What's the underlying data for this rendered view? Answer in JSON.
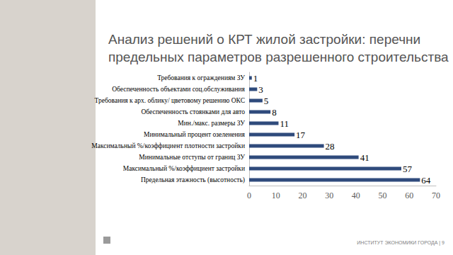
{
  "chart_data": {
    "type": "bar",
    "title": "Анализ решений о КРТ жилой застройки: перечни\nпредельных параметров разрешенного строительства",
    "orientation": "horizontal",
    "categories": [
      "Предельная этажность (высотность)",
      "Максимальный %/коэффициент застройки",
      "Минимальные отступы от границ ЗУ",
      "Максимальный %/коэффициент плотности застройки",
      "Минимальный процент озеленения",
      "Мин./макс. размеры ЗУ",
      "Обеспеченность стоянками для авто",
      "Требования к арх. облику/ цветовому решению ОКС",
      "Обеспеченность объектами соц.обслуживания",
      "Требования к ограждениям ЗУ"
    ],
    "values": [
      64,
      57,
      41,
      28,
      17,
      11,
      8,
      5,
      3,
      1
    ],
    "color": "#2f4b7c",
    "xlim": [
      0,
      70
    ],
    "xticks": [
      0,
      10,
      20,
      30,
      40,
      50,
      60,
      70
    ],
    "grid": false,
    "data_labels": true,
    "annotations": [
      "ИНСТИТУТ ЭКОНОМИКИ ГОРОДА | 9"
    ]
  }
}
